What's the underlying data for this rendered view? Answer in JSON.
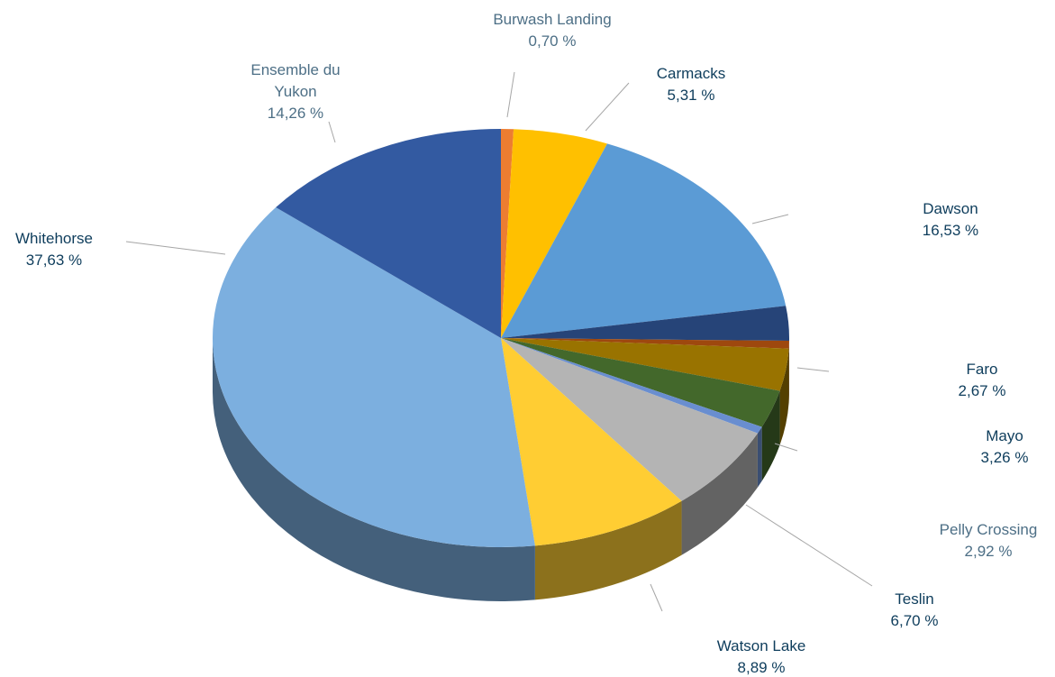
{
  "chart_data": {
    "type": "pie3d",
    "categories": [
      "Burwash Landing",
      "Carmacks",
      "Dawson",
      "Faro",
      null,
      "Mayo",
      "Pelly Crossing",
      null,
      "Teslin",
      "Watson Lake",
      "Whitehorse",
      "Ensemble du Yukon"
    ],
    "values": [
      0.7,
      5.31,
      16.53,
      2.67,
      0.6,
      3.26,
      2.92,
      0.53,
      6.7,
      8.89,
      37.63,
      14.26
    ],
    "value_labels": [
      "0,70 %",
      "5,31 %",
      "16,53 %",
      "2,67 %",
      null,
      "3,26 %",
      "2,92 %",
      null,
      "6,70 %",
      "8,89 %",
      "37,63 %",
      "14,26 %"
    ],
    "colors": [
      "#ed7d31",
      "#ffc000",
      "#5b9bd5",
      "#264478",
      "#9e480e",
      "#997300",
      "#43682b",
      "#698ed0",
      "#b4b4b4",
      "#ffcd33",
      "#7cafdf",
      "#335aa1"
    ]
  }
}
